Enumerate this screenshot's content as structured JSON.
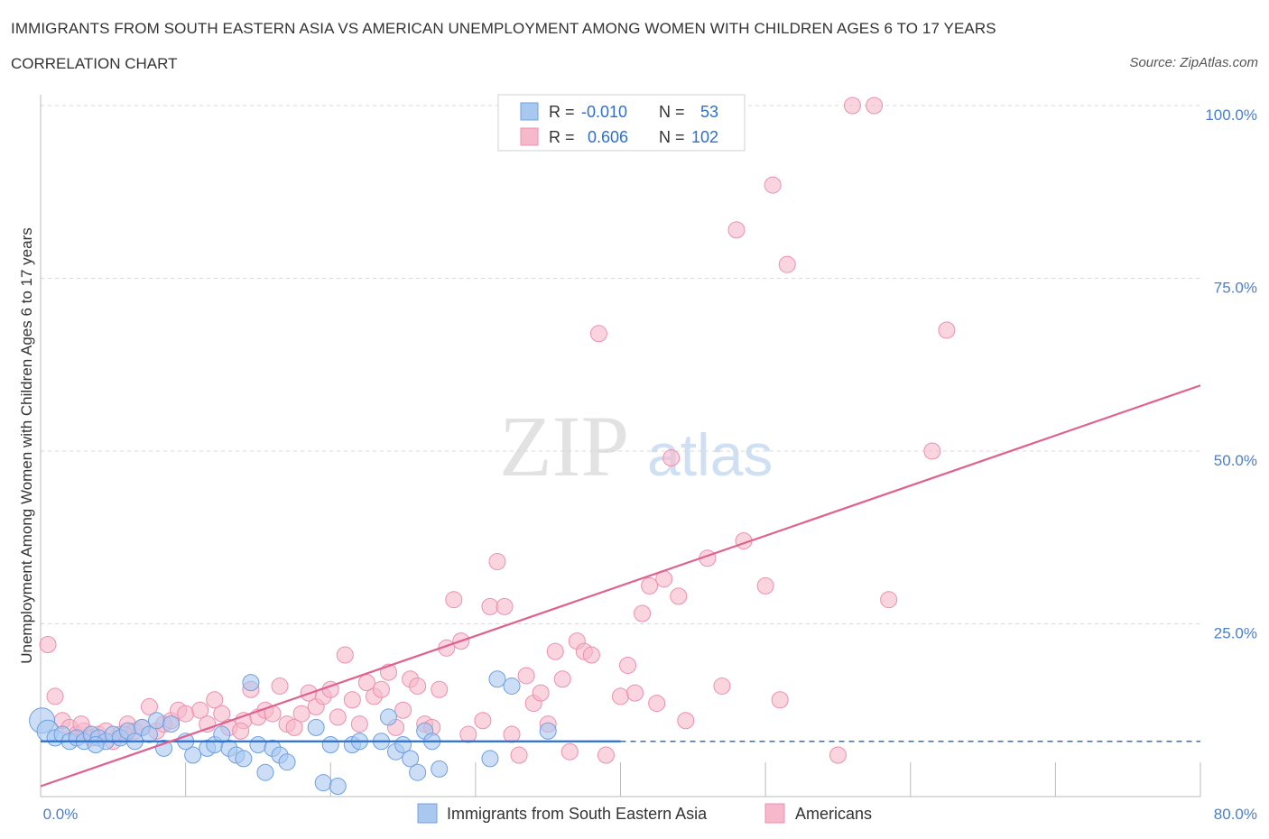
{
  "header": {
    "title": "IMMIGRANTS FROM SOUTH EASTERN ASIA VS AMERICAN UNEMPLOYMENT AMONG WOMEN WITH CHILDREN AGES 6 TO 17 YEARS",
    "subtitle": "CORRELATION CHART",
    "source": "Source: ZipAtlas.com"
  },
  "watermark": {
    "zip": "ZIP",
    "atlas": "atlas"
  },
  "legend": {
    "rows": [
      {
        "r_label": "R =",
        "r_value": "-0.010",
        "n_label": "N =",
        "n_value": "53"
      },
      {
        "r_label": "R =",
        "r_value": "0.606",
        "n_label": "N =",
        "n_value": "102"
      }
    ]
  },
  "colors": {
    "blue_fill": "#a9c8f0",
    "blue_stroke": "#6f9fe0",
    "blue_line": "#2d6fd1",
    "pink_fill": "#f6b9cc",
    "pink_stroke": "#ec8fae",
    "pink_line": "#e0608f",
    "axis_label": "#4a7fd0",
    "grid": "#d8d8d8"
  },
  "chart_data": {
    "type": "scatter",
    "title": "IMMIGRANTS FROM SOUTH EASTERN ASIA VS AMERICAN UNEMPLOYMENT AMONG WOMEN WITH CHILDREN AGES 6 TO 17 YEARS",
    "xlabel": "",
    "ylabel": "Unemployment Among Women with Children Ages 6 to 17 years",
    "xlim": [
      0,
      80
    ],
    "ylim": [
      0,
      100
    ],
    "x_tick_labels": [
      "0.0%",
      "80.0%"
    ],
    "y_ticks": [
      25,
      50,
      75,
      100
    ],
    "y_tick_labels": [
      "25.0%",
      "50.0%",
      "75.0%",
      "100.0%"
    ],
    "grid": true,
    "legend_position": "top-center",
    "series": [
      {
        "name": "Immigrants from South Eastern Asia",
        "color": "#a9c8f0",
        "r": -0.01,
        "n": 53,
        "trend": {
          "x": [
            0,
            40
          ],
          "y": [
            8.0,
            8.0
          ],
          "dashed_to": 80
        },
        "points": [
          [
            0.1,
            11.0
          ],
          [
            0.5,
            9.5
          ],
          [
            1.0,
            8.5
          ],
          [
            1.5,
            9.0
          ],
          [
            2.0,
            8.0
          ],
          [
            2.5,
            8.5
          ],
          [
            3.0,
            8.0
          ],
          [
            3.5,
            9.0
          ],
          [
            4.0,
            8.5
          ],
          [
            4.5,
            8.0
          ],
          [
            5.0,
            9.0
          ],
          [
            5.5,
            8.5
          ],
          [
            6.0,
            9.5
          ],
          [
            7.0,
            10.0
          ],
          [
            7.5,
            9.0
          ],
          [
            8.0,
            11.0
          ],
          [
            8.5,
            7.0
          ],
          [
            9.0,
            10.5
          ],
          [
            10.5,
            6.0
          ],
          [
            11.5,
            7.0
          ],
          [
            12.0,
            7.5
          ],
          [
            13.0,
            7.0
          ],
          [
            13.5,
            6.0
          ],
          [
            14.0,
            5.5
          ],
          [
            14.5,
            16.5
          ],
          [
            15.0,
            7.5
          ],
          [
            15.5,
            3.5
          ],
          [
            16.0,
            7.0
          ],
          [
            16.5,
            6.0
          ],
          [
            17.0,
            5.0
          ],
          [
            19.0,
            10.0
          ],
          [
            19.5,
            2.0
          ],
          [
            20.0,
            7.5
          ],
          [
            20.5,
            1.5
          ],
          [
            21.5,
            7.5
          ],
          [
            22.0,
            8.0
          ],
          [
            23.5,
            8.0
          ],
          [
            24.0,
            11.5
          ],
          [
            24.5,
            6.5
          ],
          [
            25.0,
            7.5
          ],
          [
            25.5,
            5.5
          ],
          [
            26.0,
            3.5
          ],
          [
            26.5,
            9.5
          ],
          [
            27.0,
            8.0
          ],
          [
            27.5,
            4.0
          ],
          [
            31.0,
            5.5
          ],
          [
            31.5,
            17.0
          ],
          [
            32.5,
            16.0
          ],
          [
            35.0,
            9.5
          ],
          [
            3.8,
            7.5
          ],
          [
            6.5,
            8.0
          ],
          [
            12.5,
            9.0
          ],
          [
            10.0,
            8.0
          ]
        ]
      },
      {
        "name": "Americans",
        "color": "#f6b9cc",
        "r": 0.606,
        "n": 102,
        "trend": {
          "x": [
            0,
            80
          ],
          "y": [
            1.5,
            59.5
          ]
        },
        "points": [
          [
            0.5,
            22.0
          ],
          [
            1.0,
            14.5
          ],
          [
            1.5,
            11.0
          ],
          [
            2.0,
            10.0
          ],
          [
            2.5,
            9.0
          ],
          [
            3.0,
            9.5
          ],
          [
            3.5,
            8.5
          ],
          [
            4.0,
            9.0
          ],
          [
            4.5,
            9.5
          ],
          [
            5.0,
            8.0
          ],
          [
            5.5,
            9.0
          ],
          [
            6.0,
            10.5
          ],
          [
            6.5,
            9.5
          ],
          [
            7.0,
            10.0
          ],
          [
            7.5,
            13.0
          ],
          [
            8.0,
            9.5
          ],
          [
            8.5,
            10.5
          ],
          [
            9.0,
            11.0
          ],
          [
            9.5,
            12.5
          ],
          [
            10.0,
            12.0
          ],
          [
            11.0,
            12.5
          ],
          [
            11.5,
            10.5
          ],
          [
            12.0,
            14.0
          ],
          [
            12.5,
            12.0
          ],
          [
            13.0,
            10.0
          ],
          [
            14.0,
            11.0
          ],
          [
            14.5,
            15.5
          ],
          [
            15.0,
            11.5
          ],
          [
            15.5,
            12.5
          ],
          [
            16.0,
            12.0
          ],
          [
            16.5,
            16.0
          ],
          [
            17.0,
            10.5
          ],
          [
            17.5,
            10.0
          ],
          [
            18.0,
            12.0
          ],
          [
            18.5,
            15.0
          ],
          [
            19.0,
            13.0
          ],
          [
            19.5,
            14.5
          ],
          [
            20.0,
            15.5
          ],
          [
            20.5,
            11.5
          ],
          [
            21.0,
            20.5
          ],
          [
            21.5,
            14.0
          ],
          [
            22.0,
            10.5
          ],
          [
            22.5,
            16.5
          ],
          [
            23.0,
            14.5
          ],
          [
            23.5,
            15.5
          ],
          [
            24.0,
            18.0
          ],
          [
            24.5,
            10.0
          ],
          [
            25.0,
            12.5
          ],
          [
            25.5,
            17.0
          ],
          [
            26.0,
            16.0
          ],
          [
            26.5,
            10.5
          ],
          [
            27.0,
            10.0
          ],
          [
            27.5,
            15.5
          ],
          [
            28.0,
            21.5
          ],
          [
            28.5,
            28.5
          ],
          [
            29.0,
            22.5
          ],
          [
            29.5,
            9.0
          ],
          [
            30.5,
            11.0
          ],
          [
            31.0,
            27.5
          ],
          [
            31.5,
            34.0
          ],
          [
            32.0,
            27.5
          ],
          [
            32.5,
            9.0
          ],
          [
            33.0,
            6.0
          ],
          [
            33.5,
            17.5
          ],
          [
            34.0,
            13.5
          ],
          [
            34.5,
            15.0
          ],
          [
            35.0,
            10.5
          ],
          [
            35.5,
            21.0
          ],
          [
            36.0,
            17.0
          ],
          [
            36.5,
            6.5
          ],
          [
            37.0,
            22.5
          ],
          [
            37.5,
            21.0
          ],
          [
            38.0,
            20.5
          ],
          [
            38.5,
            67.0
          ],
          [
            39.0,
            6.0
          ],
          [
            40.0,
            14.5
          ],
          [
            40.5,
            19.0
          ],
          [
            41.0,
            15.0
          ],
          [
            41.5,
            26.5
          ],
          [
            42.0,
            30.5
          ],
          [
            42.5,
            13.5
          ],
          [
            43.0,
            31.5
          ],
          [
            43.5,
            49.0
          ],
          [
            44.0,
            29.0
          ],
          [
            44.5,
            11.0
          ],
          [
            46.0,
            34.5
          ],
          [
            47.0,
            16.0
          ],
          [
            48.0,
            82.0
          ],
          [
            48.5,
            37.0
          ],
          [
            50.0,
            30.5
          ],
          [
            50.5,
            88.5
          ],
          [
            51.0,
            14.0
          ],
          [
            51.5,
            77.0
          ],
          [
            55.0,
            6.0
          ],
          [
            56.0,
            100.0
          ],
          [
            57.5,
            100.0
          ],
          [
            58.5,
            28.5
          ],
          [
            61.5,
            50.0
          ],
          [
            62.5,
            67.5
          ],
          [
            2.8,
            10.5
          ],
          [
            5.8,
            9.0
          ],
          [
            13.8,
            9.5
          ]
        ]
      }
    ]
  },
  "bottom_legend": {
    "items": [
      {
        "label": "Immigrants from South Eastern Asia"
      },
      {
        "label": "Americans"
      }
    ]
  }
}
